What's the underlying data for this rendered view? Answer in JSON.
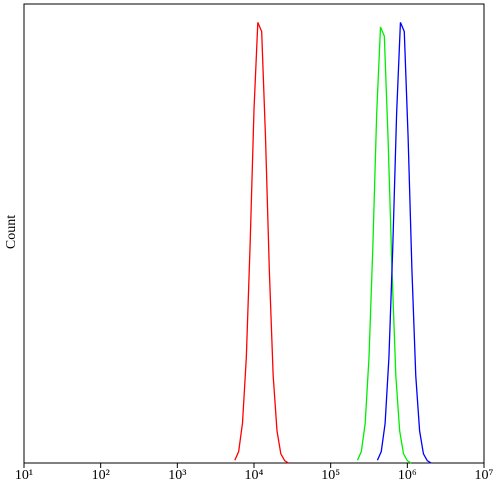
{
  "chart_data": {
    "type": "line",
    "y_label": "Count",
    "xscale": "log",
    "xlim": [
      10,
      10000000
    ],
    "xticks": [
      {
        "value": 10,
        "label": "10¹"
      },
      {
        "value": 100,
        "label": "10²"
      },
      {
        "value": 1000,
        "label": "10³"
      },
      {
        "value": 10000,
        "label": "10⁴"
      },
      {
        "value": 100000,
        "label": "10⁵"
      },
      {
        "value": 1000000,
        "label": "10⁶"
      },
      {
        "value": 10000000,
        "label": "10⁷"
      }
    ],
    "ylim": [
      0,
      100
    ],
    "series": [
      {
        "color": "#ff0000",
        "x": [
          5623,
          6310,
          7079,
          7943,
          8913,
          10000,
          11220,
          12589,
          14125,
          15849,
          17783,
          19953,
          22387,
          25119,
          28184
        ],
        "values": [
          0.6,
          2.5,
          8.7,
          23,
          48,
          77,
          96,
          94,
          71,
          42,
          19,
          7,
          2,
          0.5,
          0
        ]
      },
      {
        "color": "#00ee00",
        "x": [
          223872,
          251189,
          281838,
          316228,
          354813,
          398107,
          446684,
          501187,
          562341,
          630957,
          707946,
          794328,
          891251,
          1000000,
          1122018
        ],
        "values": [
          0.6,
          2.5,
          8.6,
          23,
          47,
          76,
          95,
          93,
          70,
          42,
          19,
          7,
          2,
          0.5,
          0
        ]
      },
      {
        "color": "#0000ff",
        "x": [
          407380,
          457088,
          512861,
          575440,
          645654,
          724436,
          812831,
          912011,
          1023293,
          1148154,
          1288250,
          1445440,
          1621810,
          1819701,
          2041738
        ],
        "values": [
          0.6,
          2.5,
          8.6,
          23,
          47,
          76,
          96,
          94,
          71,
          42,
          19,
          7,
          2,
          0.5,
          0
        ]
      }
    ]
  }
}
